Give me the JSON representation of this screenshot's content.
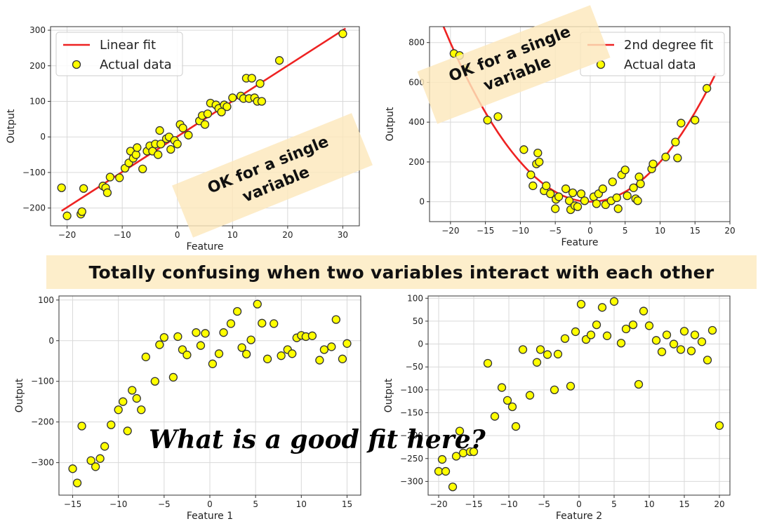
{
  "banner": "Totally confusing when two variables interact with each other",
  "note_top_left": "OK for a single variable",
  "note_top_right": "OK for a single variable",
  "question": "What is a good fit here?",
  "colors": {
    "point_fill": "#ffff00",
    "point_edge": "#333333",
    "fit_line": "#ee2222",
    "grid": "#d9d9d9"
  },
  "chart_data": [
    {
      "type": "scatter",
      "xlabel": "Feature",
      "ylabel": "Output",
      "xlim": [
        -23,
        33
      ],
      "ylim": [
        -250,
        310
      ],
      "xticks": [
        -20,
        -10,
        0,
        10,
        20,
        30
      ],
      "yticks": [
        -200,
        -100,
        0,
        100,
        200,
        300
      ],
      "legend": {
        "position": "top-left",
        "entries": [
          "Linear fit",
          "Actual data"
        ]
      },
      "grid": true,
      "fit": {
        "name": "Linear fit",
        "kind": "line",
        "points": [
          [
            -21,
            -208
          ],
          [
            30.5,
            305
          ]
        ]
      },
      "series": [
        {
          "name": "Actual data",
          "points": [
            [
              -21,
              -143
            ],
            [
              -20,
              -222
            ],
            [
              -17.5,
              -217
            ],
            [
              -17.3,
              -210
            ],
            [
              -17,
              -145
            ],
            [
              -13.5,
              -138
            ],
            [
              -13,
              -143
            ],
            [
              -12.7,
              -157
            ],
            [
              -12.2,
              -113
            ],
            [
              -10.5,
              -115
            ],
            [
              -9.5,
              -88
            ],
            [
              -8.8,
              -73
            ],
            [
              -8.5,
              -40
            ],
            [
              -8,
              -60
            ],
            [
              -7.5,
              -50
            ],
            [
              -7.3,
              -30
            ],
            [
              -6.3,
              -90
            ],
            [
              -5.5,
              -40
            ],
            [
              -5,
              -25
            ],
            [
              -4.5,
              -40
            ],
            [
              -4,
              -20
            ],
            [
              -3.5,
              -50
            ],
            [
              -3.2,
              18
            ],
            [
              -3,
              -20
            ],
            [
              -2,
              -5
            ],
            [
              -1.5,
              0
            ],
            [
              -1.2,
              -35
            ],
            [
              -0.5,
              -10
            ],
            [
              0,
              -20
            ],
            [
              0.5,
              35
            ],
            [
              1,
              25
            ],
            [
              2,
              5
            ],
            [
              4,
              45
            ],
            [
              4.5,
              60
            ],
            [
              5,
              35
            ],
            [
              5.5,
              65
            ],
            [
              6,
              95
            ],
            [
              7,
              90
            ],
            [
              7.5,
              80
            ],
            [
              8,
              70
            ],
            [
              8.5,
              90
            ],
            [
              9,
              85
            ],
            [
              10,
              110
            ],
            [
              11.5,
              115
            ],
            [
              12,
              108
            ],
            [
              12.5,
              165
            ],
            [
              13,
              108
            ],
            [
              13.5,
              165
            ],
            [
              14,
              110
            ],
            [
              14.5,
              100
            ],
            [
              15,
              150
            ],
            [
              15.3,
              100
            ],
            [
              18.5,
              215
            ],
            [
              30,
              290
            ]
          ]
        }
      ]
    },
    {
      "type": "scatter",
      "xlabel": "Feature",
      "ylabel": "Output",
      "xlim": [
        -23,
        20
      ],
      "ylim": [
        -100,
        880
      ],
      "xticks": [
        -20,
        -15,
        -10,
        -5,
        0,
        5,
        10,
        15,
        20
      ],
      "yticks": [
        0,
        200,
        400,
        600,
        800
      ],
      "legend": {
        "position": "top-right",
        "entries": [
          "2nd degree fit",
          "Actual data"
        ]
      },
      "grid": true,
      "fit": {
        "name": "2nd degree fit",
        "kind": "quadratic",
        "a": 1.996,
        "b": 0,
        "c": 0,
        "x_range": [
          -21,
          18
        ]
      },
      "series": [
        {
          "name": "Actual data",
          "points": [
            [
              -19.5,
              745
            ],
            [
              -18.7,
              735
            ],
            [
              -17.8,
              670
            ],
            [
              -14.7,
              410
            ],
            [
              -13.2,
              428
            ],
            [
              -9.5,
              262
            ],
            [
              -8.5,
              135
            ],
            [
              -8.2,
              80
            ],
            [
              -7.7,
              190
            ],
            [
              -7.5,
              245
            ],
            [
              -7.3,
              200
            ],
            [
              -6.6,
              55
            ],
            [
              -6.3,
              80
            ],
            [
              -5.7,
              40
            ],
            [
              -5,
              -35
            ],
            [
              -4.9,
              12
            ],
            [
              -4.5,
              25
            ],
            [
              -3.5,
              65
            ],
            [
              -3,
              5
            ],
            [
              -2.8,
              -40
            ],
            [
              -2.5,
              45
            ],
            [
              -2.2,
              -20
            ],
            [
              -1.8,
              -25
            ],
            [
              -1.3,
              40
            ],
            [
              -0.8,
              5
            ],
            [
              0.5,
              25
            ],
            [
              0.9,
              -10
            ],
            [
              1.2,
              40
            ],
            [
              1.8,
              65
            ],
            [
              2.2,
              -15
            ],
            [
              3,
              5
            ],
            [
              3.2,
              100
            ],
            [
              3.8,
              20
            ],
            [
              4,
              -35
            ],
            [
              4.5,
              135
            ],
            [
              5,
              160
            ],
            [
              5.3,
              30
            ],
            [
              6.2,
              70
            ],
            [
              6.5,
              15
            ],
            [
              6.8,
              5
            ],
            [
              7,
              125
            ],
            [
              7.2,
              90
            ],
            [
              8.8,
              165
            ],
            [
              9,
              190
            ],
            [
              10.8,
              225
            ],
            [
              12.2,
              300
            ],
            [
              12.5,
              220
            ],
            [
              13,
              395
            ],
            [
              15,
              410
            ],
            [
              16.7,
              570
            ]
          ]
        }
      ]
    },
    {
      "type": "scatter",
      "xlabel": "Feature 1",
      "ylabel": "Output",
      "xlim": [
        -16.5,
        16.5
      ],
      "ylim": [
        -380,
        110
      ],
      "xticks": [
        -15,
        -10,
        -5,
        0,
        5,
        10,
        15
      ],
      "yticks": [
        -300,
        -200,
        -100,
        0,
        100
      ],
      "grid": true,
      "series": [
        {
          "name": "",
          "points": [
            [
              -15,
              -315
            ],
            [
              -14.5,
              -350
            ],
            [
              -14,
              -210
            ],
            [
              -13,
              -295
            ],
            [
              -12.5,
              -310
            ],
            [
              -12,
              -290
            ],
            [
              -11.5,
              -260
            ],
            [
              -10.8,
              -207
            ],
            [
              -10,
              -170
            ],
            [
              -9.5,
              -150
            ],
            [
              -9,
              -222
            ],
            [
              -8.5,
              -122
            ],
            [
              -8,
              -142
            ],
            [
              -7.5,
              -170
            ],
            [
              -7,
              -40
            ],
            [
              -6,
              -100
            ],
            [
              -5.5,
              -10
            ],
            [
              -5,
              8
            ],
            [
              -4,
              -90
            ],
            [
              -3.5,
              10
            ],
            [
              -3,
              -22
            ],
            [
              -2.5,
              -35
            ],
            [
              -1.5,
              20
            ],
            [
              -1,
              -12
            ],
            [
              -0.5,
              18
            ],
            [
              0.3,
              -57
            ],
            [
              1,
              -32
            ],
            [
              1.5,
              20
            ],
            [
              2.3,
              42
            ],
            [
              3,
              72
            ],
            [
              3.5,
              -17
            ],
            [
              4,
              -33
            ],
            [
              4.5,
              2
            ],
            [
              5.2,
              90
            ],
            [
              5.7,
              43
            ],
            [
              6.3,
              -45
            ],
            [
              7,
              42
            ],
            [
              7.8,
              -37
            ],
            [
              8.5,
              -22
            ],
            [
              9,
              -32
            ],
            [
              9.5,
              7
            ],
            [
              10,
              13
            ],
            [
              10.5,
              10
            ],
            [
              11.2,
              12
            ],
            [
              12,
              -48
            ],
            [
              12.5,
              -22
            ],
            [
              13.3,
              -15
            ],
            [
              13.8,
              52
            ],
            [
              14.5,
              -45
            ],
            [
              15,
              -7
            ]
          ]
        }
      ]
    },
    {
      "type": "scatter",
      "xlabel": "Feature 2",
      "ylabel": "Output",
      "xlim": [
        -21.5,
        21.5
      ],
      "ylim": [
        -330,
        105
      ],
      "xticks": [
        -20,
        -15,
        -10,
        -5,
        0,
        5,
        10,
        15,
        20
      ],
      "yticks": [
        -300,
        -250,
        -200,
        -150,
        -100,
        -50,
        0,
        50,
        100
      ],
      "grid": true,
      "series": [
        {
          "name": "",
          "points": [
            [
              -20,
              -278
            ],
            [
              -19.5,
              -252
            ],
            [
              -19,
              -278
            ],
            [
              -18,
              -312
            ],
            [
              -17.5,
              -245
            ],
            [
              -17,
              -190
            ],
            [
              -16.5,
              -238
            ],
            [
              -15.5,
              -235
            ],
            [
              -15,
              -235
            ],
            [
              -13,
              -42
            ],
            [
              -12,
              -158
            ],
            [
              -11,
              -95
            ],
            [
              -10.2,
              -123
            ],
            [
              -9.5,
              -137
            ],
            [
              -9,
              -180
            ],
            [
              -8,
              -12
            ],
            [
              -7,
              -112
            ],
            [
              -6,
              -40
            ],
            [
              -5.5,
              -12
            ],
            [
              -4.5,
              -23
            ],
            [
              -3.5,
              -100
            ],
            [
              -3,
              -22
            ],
            [
              -2,
              12
            ],
            [
              -1.2,
              -92
            ],
            [
              -0.5,
              27
            ],
            [
              0.3,
              87
            ],
            [
              1,
              10
            ],
            [
              1.7,
              20
            ],
            [
              2.5,
              42
            ],
            [
              3.3,
              80
            ],
            [
              4,
              18
            ],
            [
              5,
              93
            ],
            [
              6,
              2
            ],
            [
              6.7,
              33
            ],
            [
              7.7,
              42
            ],
            [
              8.5,
              -88
            ],
            [
              9.2,
              72
            ],
            [
              10,
              40
            ],
            [
              11,
              8
            ],
            [
              11.8,
              -17
            ],
            [
              12.5,
              20
            ],
            [
              13.5,
              0
            ],
            [
              14.5,
              -12
            ],
            [
              15,
              28
            ],
            [
              16,
              -15
            ],
            [
              16.5,
              20
            ],
            [
              17.5,
              5
            ],
            [
              18.3,
              -35
            ],
            [
              19,
              30
            ],
            [
              20,
              -178
            ]
          ]
        }
      ]
    }
  ]
}
